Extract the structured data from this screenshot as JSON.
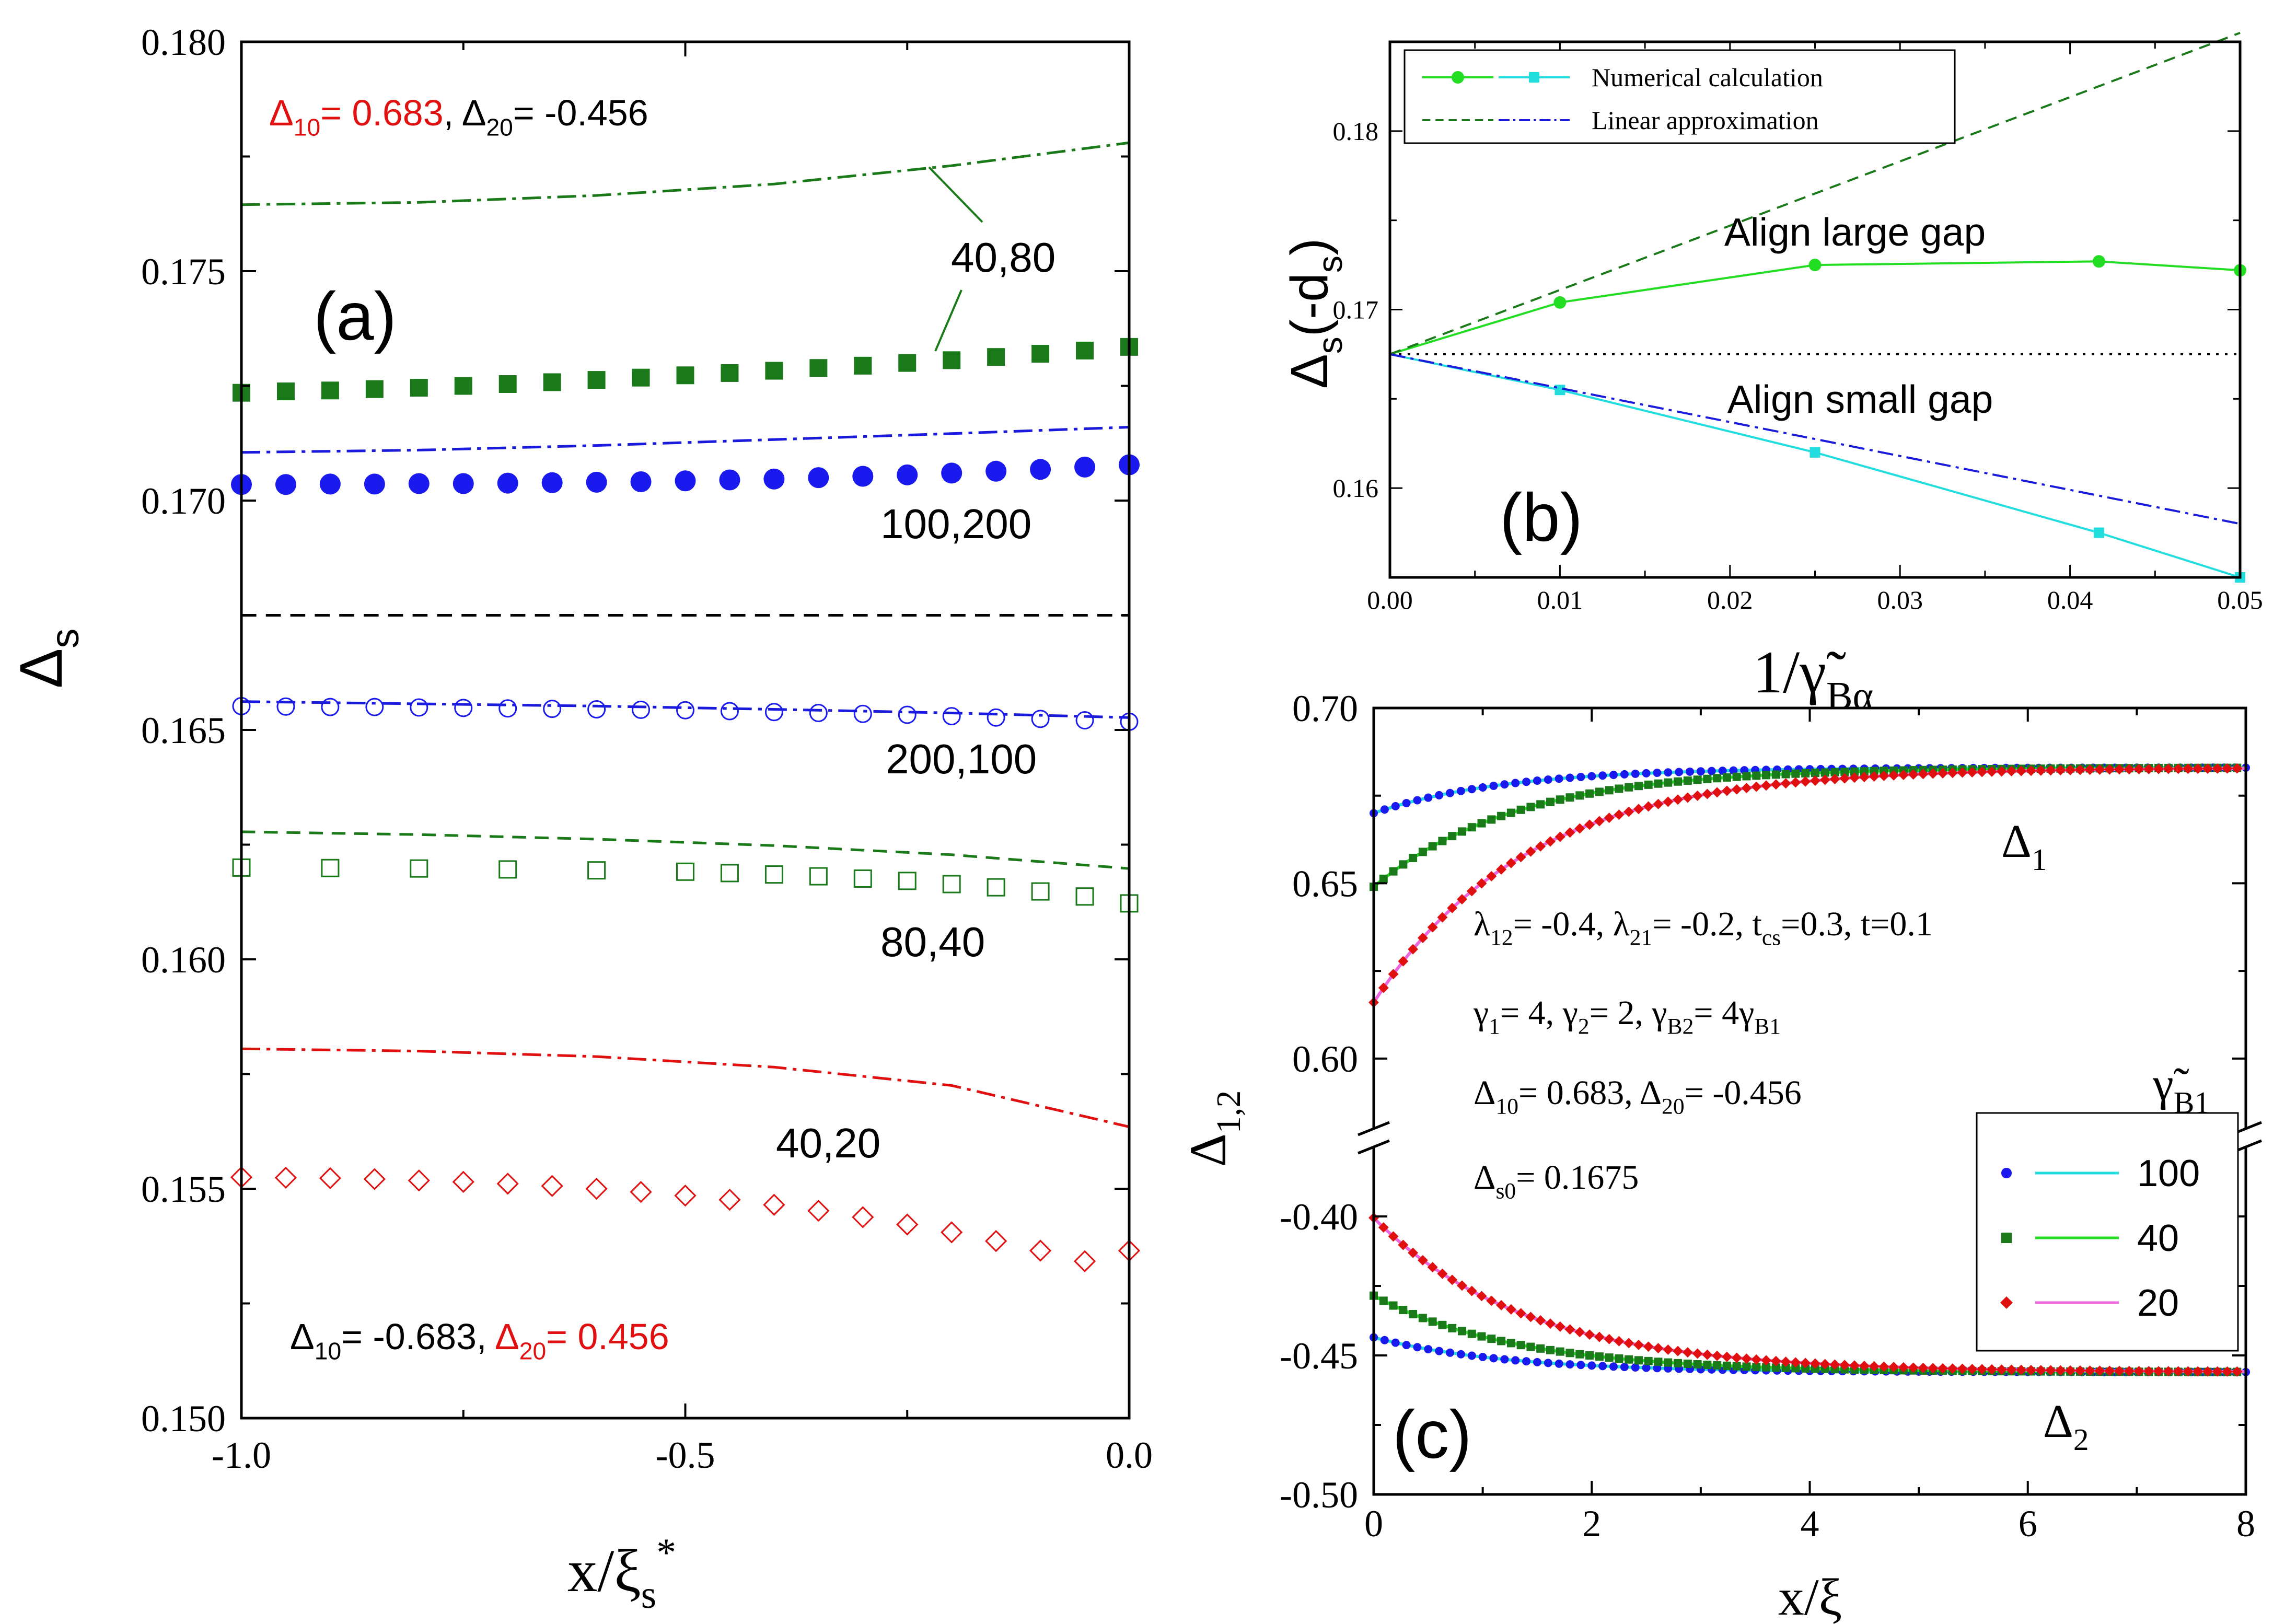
{
  "chart_data": [
    {
      "id": "a",
      "type": "line",
      "panel_label": "(a)",
      "xlabel": "x/ξ",
      "xlabel_sub": "s",
      "xlabel_sup": "*",
      "ylabel": "Δ",
      "ylabel_sub": "s",
      "xlim": [
        -1.0,
        0.0
      ],
      "ylim": [
        0.15,
        0.18
      ],
      "xticks": [
        "-1.0",
        "-0.5",
        "0.0"
      ],
      "yticks": [
        "0.150",
        "0.155",
        "0.160",
        "0.165",
        "0.170",
        "0.175",
        "0.180"
      ],
      "reference_line": {
        "y": 0.1675,
        "style": "dashed",
        "color": "#000000"
      },
      "annotations": {
        "top": {
          "d10_base": "Δ",
          "d10_sub": "10",
          "d10_val": "= 0.683",
          "sep": ", ",
          "d20_base": "Δ",
          "d20_sub": "20",
          "d20_val": "= -0.456"
        },
        "bottom": {
          "d10_base": "Δ",
          "d10_sub": "10",
          "d10_val": "= -0.683",
          "sep": ", ",
          "d20_base": "Δ",
          "d20_sub": "20",
          "d20_val": "=  0.456"
        },
        "label_40_80": "40,80",
        "label_100_200": "100,200",
        "label_200_100": "200,100",
        "label_80_40": "80,40",
        "label_40_20": "40,20"
      },
      "series": [
        {
          "name": "40,80 approx",
          "color": "#1a7a1a",
          "style": "dashdot",
          "x": [
            -1.0,
            -0.8,
            -0.6,
            -0.4,
            -0.2,
            0.0
          ],
          "y": [
            0.17645,
            0.1765,
            0.17665,
            0.1769,
            0.1773,
            0.1778
          ]
        },
        {
          "name": "40,80 numerical",
          "color": "#1a7a1a",
          "marker": "square-filled",
          "x": [
            -1.0,
            -0.95,
            -0.9,
            -0.85,
            -0.8,
            -0.75,
            -0.7,
            -0.65,
            -0.6,
            -0.55,
            -0.5,
            -0.45,
            -0.4,
            -0.35,
            -0.3,
            -0.25,
            -0.2,
            -0.15,
            -0.1,
            -0.05,
            0.0
          ],
          "y": [
            0.17235,
            0.17238,
            0.1724,
            0.17243,
            0.17246,
            0.1725,
            0.17254,
            0.17258,
            0.17263,
            0.17268,
            0.17273,
            0.17278,
            0.17283,
            0.17289,
            0.17294,
            0.173,
            0.17306,
            0.17313,
            0.1732,
            0.17327,
            0.17335
          ]
        },
        {
          "name": "100,200 approx",
          "color": "#1a1adc",
          "style": "dashdot",
          "x": [
            -1.0,
            -0.8,
            -0.6,
            -0.4,
            -0.2,
            0.0
          ],
          "y": [
            0.17105,
            0.1711,
            0.1712,
            0.17133,
            0.17146,
            0.1716
          ]
        },
        {
          "name": "100,200 numerical",
          "color": "#1a1aee",
          "marker": "circle-filled",
          "x": [
            -1.0,
            -0.95,
            -0.9,
            -0.85,
            -0.8,
            -0.75,
            -0.7,
            -0.65,
            -0.6,
            -0.55,
            -0.5,
            -0.45,
            -0.4,
            -0.35,
            -0.3,
            -0.25,
            -0.2,
            -0.15,
            -0.1,
            -0.05,
            0.0
          ],
          "y": [
            0.17035,
            0.17035,
            0.17036,
            0.17036,
            0.17037,
            0.17037,
            0.17038,
            0.17039,
            0.1704,
            0.17041,
            0.17043,
            0.17045,
            0.17047,
            0.1705,
            0.17053,
            0.17056,
            0.1706,
            0.17064,
            0.17068,
            0.17073,
            0.17078
          ]
        },
        {
          "name": "200,100 approx",
          "color": "#1a1adc",
          "style": "dashdot",
          "x": [
            -1.0,
            -0.8,
            -0.6,
            -0.4,
            -0.2,
            0.0
          ],
          "y": [
            0.16562,
            0.16557,
            0.16552,
            0.16545,
            0.16537,
            0.16527
          ]
        },
        {
          "name": "200,100 numerical",
          "color": "#1a1aee",
          "marker": "circle-open",
          "x": [
            -1.0,
            -0.95,
            -0.9,
            -0.85,
            -0.8,
            -0.75,
            -0.7,
            -0.65,
            -0.6,
            -0.55,
            -0.5,
            -0.45,
            -0.4,
            -0.35,
            -0.3,
            -0.25,
            -0.2,
            -0.15,
            -0.1,
            -0.05,
            0.0
          ],
          "y": [
            0.16552,
            0.16551,
            0.1655,
            0.1655,
            0.16549,
            0.16548,
            0.16547,
            0.16546,
            0.16545,
            0.16544,
            0.16543,
            0.16541,
            0.16539,
            0.16537,
            0.16535,
            0.16533,
            0.1653,
            0.16527,
            0.16524,
            0.16521,
            0.16518
          ]
        },
        {
          "name": "80,40 approx",
          "color": "#1a7a1a",
          "style": "dashed",
          "x": [
            -1.0,
            -0.8,
            -0.6,
            -0.4,
            -0.2,
            0.0
          ],
          "y": [
            0.16278,
            0.16272,
            0.16262,
            0.16248,
            0.16228,
            0.16198
          ]
        },
        {
          "name": "80,40 numerical",
          "color": "#1a7a1a",
          "marker": "square-open",
          "x": [
            -1.0,
            -0.9,
            -0.8,
            -0.7,
            -0.6,
            -0.5,
            -0.45,
            -0.4,
            -0.35,
            -0.3,
            -0.25,
            -0.2,
            -0.15,
            -0.1,
            -0.05,
            0.0
          ],
          "y": [
            0.162,
            0.16199,
            0.16198,
            0.16196,
            0.16194,
            0.16191,
            0.16188,
            0.16185,
            0.16181,
            0.16176,
            0.16171,
            0.16164,
            0.16157,
            0.16148,
            0.16137,
            0.16122
          ]
        },
        {
          "name": "40,20 approx",
          "color": "#e01010",
          "style": "dashdot",
          "x": [
            -1.0,
            -0.8,
            -0.6,
            -0.4,
            -0.2,
            0.0
          ],
          "y": [
            0.15805,
            0.158,
            0.15788,
            0.15765,
            0.15725,
            0.15635
          ]
        },
        {
          "name": "40,20 numerical",
          "color": "#e01010",
          "marker": "diamond-open",
          "x": [
            -1.0,
            -0.95,
            -0.9,
            -0.85,
            -0.8,
            -0.75,
            -0.7,
            -0.65,
            -0.6,
            -0.55,
            -0.5,
            -0.45,
            -0.4,
            -0.35,
            -0.3,
            -0.25,
            -0.2,
            -0.15,
            -0.1,
            -0.05,
            0.0
          ],
          "y": [
            0.15525,
            0.15524,
            0.15523,
            0.15521,
            0.15518,
            0.15515,
            0.15511,
            0.15506,
            0.155,
            0.15493,
            0.15485,
            0.15476,
            0.15465,
            0.15452,
            0.15438,
            0.15422,
            0.15405,
            0.15386,
            0.15365,
            0.15342,
            0.15365
          ]
        }
      ]
    },
    {
      "id": "b",
      "type": "line",
      "panel_label": "(b)",
      "xlabel": "1/γ̃",
      "xlabel_sub": "Bα",
      "ylabel": "Δ",
      "ylabel_sub": "s",
      "ylabel_tail": "(-d",
      "ylabel_tail_sub": "s",
      "ylabel_close": ")",
      "xlim": [
        0.0,
        0.05
      ],
      "ylim": [
        0.155,
        0.185
      ],
      "xticks": [
        "0.00",
        "0.01",
        "0.02",
        "0.03",
        "0.04",
        "0.05"
      ],
      "yticks": [
        "0.16",
        "0.17",
        "0.18"
      ],
      "reference_line": {
        "y": 0.1675,
        "style": "dotted",
        "color": "#000000"
      },
      "legend": [
        {
          "label": "Numerical calculation",
          "colors": [
            "#22dd22",
            "#22dddd"
          ]
        },
        {
          "label": "Linear approximation",
          "colors": [
            "#1a7a1a",
            "#1a1adc"
          ]
        }
      ],
      "legend_position": "top-left",
      "annotations": {
        "large": "Align large gap",
        "small": "Align small gap"
      },
      "series": [
        {
          "name": "Align large gap numerical",
          "color": "#22dd22",
          "marker": "circle-filled",
          "x": [
            0.0,
            0.01,
            0.025,
            0.0417,
            0.05
          ],
          "y": [
            0.1675,
            0.1704,
            0.1725,
            0.1727,
            0.1722
          ]
        },
        {
          "name": "Align small gap numerical",
          "color": "#22dddd",
          "marker": "square-filled",
          "x": [
            0.0,
            0.01,
            0.025,
            0.0417,
            0.05
          ],
          "y": [
            0.1675,
            0.1655,
            0.162,
            0.1575,
            0.155
          ]
        },
        {
          "name": "Align large gap linear",
          "color": "#1a7a1a",
          "style": "dashed",
          "x": [
            0.0,
            0.05
          ],
          "y": [
            0.1675,
            0.1855
          ]
        },
        {
          "name": "Align small gap linear",
          "color": "#1a1adc",
          "style": "dashdot",
          "x": [
            0.0,
            0.05
          ],
          "y": [
            0.1675,
            0.158
          ]
        }
      ]
    },
    {
      "id": "c",
      "type": "line",
      "panel_label": "(c)",
      "xlabel": "x/ξ",
      "ylabel": "Δ",
      "ylabel_sub": "1,2",
      "xlim": [
        0,
        8
      ],
      "ylim_upper": [
        0.58,
        0.7
      ],
      "ylim_lower": [
        -0.5,
        -0.375
      ],
      "xticks": [
        "0",
        "2",
        "4",
        "6",
        "8"
      ],
      "yticks_upper": [
        "0.60",
        "0.65",
        "0.70"
      ],
      "yticks_lower": [
        "-0.50",
        "-0.45",
        "-0.40"
      ],
      "delta1_label": "Δ",
      "delta1_sub": "1",
      "delta2_label": "Δ",
      "delta2_sub": "2",
      "params": {
        "line1": {
          "a": "λ",
          "a_sub": "12",
          "a_val": "= -0.4, ",
          "b": "λ",
          "b_sub": "21",
          "b_val": "= -0.2, t",
          "c_sub": "cs",
          "c_val": "=0.3, t=0.1"
        },
        "line2": {
          "a": "γ",
          "a_sub": "1",
          "a_val": "= 4, ",
          "b": "γ",
          "b_sub": "2",
          "b_val": "= 2, ",
          "c": "γ",
          "c_sub": "B2",
          "c_val": "= 4γ",
          "d_sub": "B1"
        },
        "line3": {
          "a": "Δ",
          "a_sub": "10",
          "a_val": "= 0.683, ",
          "b": "Δ",
          "b_sub": "20",
          "b_val": "= -0.456"
        },
        "line4": {
          "a": "Δ",
          "a_sub": "s0",
          "a_val": "= 0.1675"
        }
      },
      "legend_title": "γ̃",
      "legend_title_sub": "B1",
      "legend": [
        {
          "label": "100",
          "marker_color": "#1a1aee",
          "line_color": "#22dddd"
        },
        {
          "label": "40",
          "marker_color": "#1a7a1a",
          "line_color": "#22dd22"
        },
        {
          "label": "20",
          "marker_color": "#e01010",
          "line_color": "#ee66dd"
        }
      ],
      "legend_position": "bottom-right",
      "series": [
        {
          "name": "100",
          "delta1": {
            "y0": 0.67,
            "yinf": 0.683,
            "decay": 1.2
          },
          "delta2": {
            "y0": -0.4435,
            "yinf": -0.456,
            "decay": 1.2
          }
        },
        {
          "name": "40",
          "delta1": {
            "y0": 0.649,
            "yinf": 0.683,
            "decay": 1.3
          },
          "delta2": {
            "y0": -0.4285,
            "yinf": -0.456,
            "decay": 1.3
          }
        },
        {
          "name": "20",
          "delta1": {
            "y0": 0.616,
            "yinf": 0.683,
            "decay": 1.4
          },
          "delta2": {
            "y0": -0.4005,
            "yinf": -0.456,
            "decay": 1.4
          }
        }
      ]
    }
  ]
}
